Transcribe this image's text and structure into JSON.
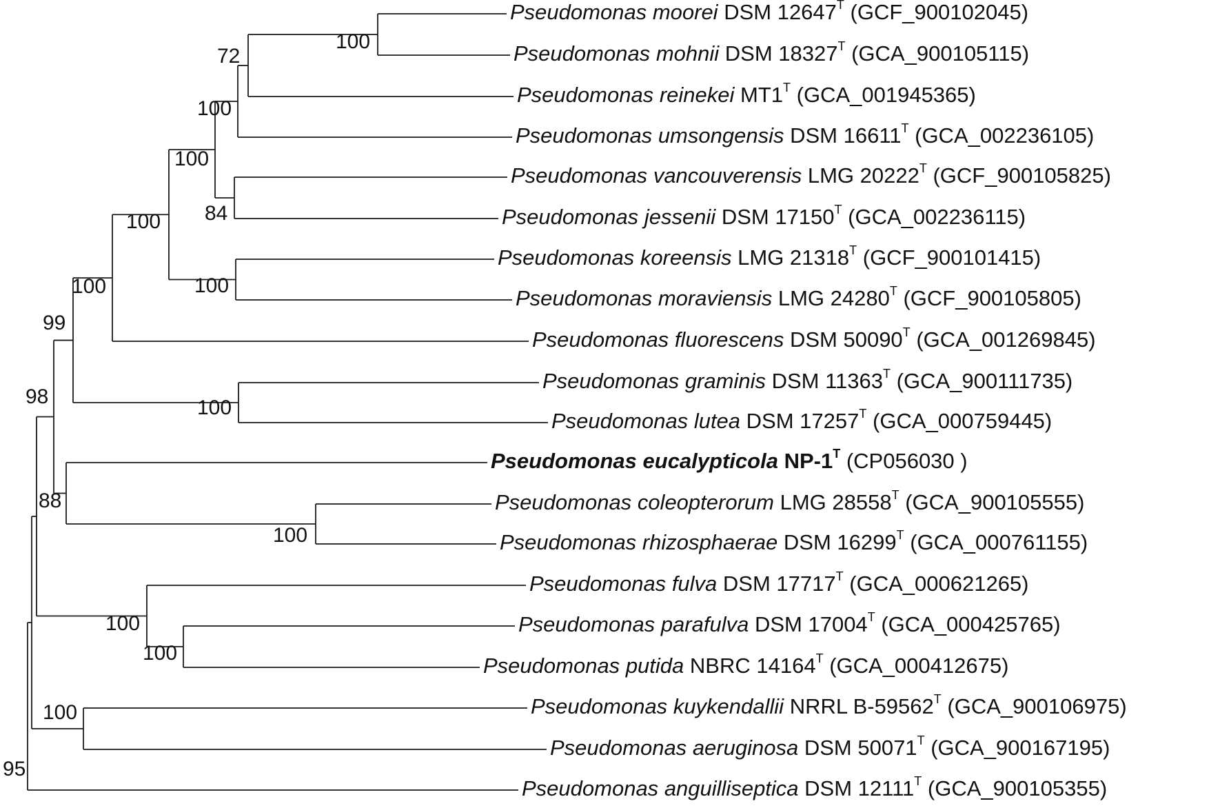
{
  "tree": {
    "line_color": "#1a1a1a",
    "text_color": "#111111",
    "leaves": [
      {
        "genus": "Pseudomonas",
        "species": "moorei",
        "strain": "DSM 12647",
        "type_mark": "T",
        "accession": "(GCF_900102045)",
        "bold": false
      },
      {
        "genus": "Pseudomonas",
        "species": "mohnii",
        "strain": "DSM 18327",
        "type_mark": "T",
        "accession": "(GCA_900105115)",
        "bold": false
      },
      {
        "genus": "Pseudomonas",
        "species": "reinekei",
        "strain": "MT1",
        "type_mark": "T",
        "accession": "(GCA_001945365)",
        "bold": false
      },
      {
        "genus": "Pseudomonas",
        "species": "umsongensis",
        "strain": "DSM 16611",
        "type_mark": "T",
        "accession": "(GCA_002236105)",
        "bold": false
      },
      {
        "genus": "Pseudomonas",
        "species": "vancouverensis",
        "strain": "LMG 20222",
        "type_mark": "T",
        "accession": "(GCF_900105825)",
        "bold": false
      },
      {
        "genus": "Pseudomonas",
        "species": "jessenii",
        "strain": "DSM 17150",
        "type_mark": "T",
        "accession": "(GCA_002236115)",
        "bold": false
      },
      {
        "genus": "Pseudomonas",
        "species": "koreensis",
        "strain": "LMG 21318",
        "type_mark": "T",
        "accession": "(GCF_900101415)",
        "bold": false
      },
      {
        "genus": "Pseudomonas",
        "species": "moraviensis",
        "strain": "LMG 24280",
        "type_mark": "T",
        "accession": "(GCF_900105805)",
        "bold": false
      },
      {
        "genus": "Pseudomonas",
        "species": "fluorescens",
        "strain": "DSM 50090",
        "type_mark": "T",
        "accession": "(GCA_001269845)",
        "bold": false
      },
      {
        "genus": "Pseudomonas",
        "species": "graminis",
        "strain": "DSM 11363",
        "type_mark": "T",
        "accession": "(GCA_900111735)",
        "bold": false
      },
      {
        "genus": "Pseudomonas",
        "species": "lutea",
        "strain": "DSM 17257",
        "type_mark": "T",
        "accession": "(GCA_000759445)",
        "bold": false
      },
      {
        "genus": "Pseudomonas",
        "species": "eucalypticola",
        "strain": "NP-1",
        "type_mark": "T",
        "accession": "(CP056030 )",
        "bold": true
      },
      {
        "genus": "Pseudomonas",
        "species": "coleopterorum",
        "strain": "LMG 28558",
        "type_mark": "T",
        "accession": "(GCA_900105555)",
        "bold": false
      },
      {
        "genus": "Pseudomonas",
        "species": "rhizosphaerae",
        "strain": "DSM 16299",
        "type_mark": "T",
        "accession": "(GCA_000761155)",
        "bold": false
      },
      {
        "genus": "Pseudomonas",
        "species": "fulva",
        "strain": "DSM 17717",
        "type_mark": "T",
        "accession": "(GCA_000621265)",
        "bold": false
      },
      {
        "genus": "Pseudomonas",
        "species": "parafulva",
        "strain": "DSM 17004",
        "type_mark": "T",
        "accession": "(GCA_000425765)",
        "bold": false
      },
      {
        "genus": "Pseudomonas",
        "species": "putida",
        "strain": "NBRC 14164",
        "type_mark": "T",
        "accession": "(GCA_000412675)",
        "bold": false
      },
      {
        "genus": "Pseudomonas",
        "species": "kuykendallii",
        "strain": "NRRL B-59562",
        "type_mark": "T",
        "accession": "(GCA_900106975)",
        "bold": false
      },
      {
        "genus": "Pseudomonas",
        "species": "aeruginosa",
        "strain": "DSM 50071",
        "type_mark": "T",
        "accession": "(GCA_900167195)",
        "bold": false
      },
      {
        "genus": "Pseudomonas",
        "species": "anguilliseptica",
        "strain": "DSM 12111",
        "type_mark": "T",
        "accession": "(GCA_900105355)",
        "bold": false
      }
    ],
    "bootstrap_values": [
      "100",
      "72",
      "100",
      "84",
      "100",
      "100",
      "100",
      "100",
      "100",
      "99",
      "100",
      "88",
      "98",
      "100",
      "100",
      "100",
      "95"
    ]
  }
}
